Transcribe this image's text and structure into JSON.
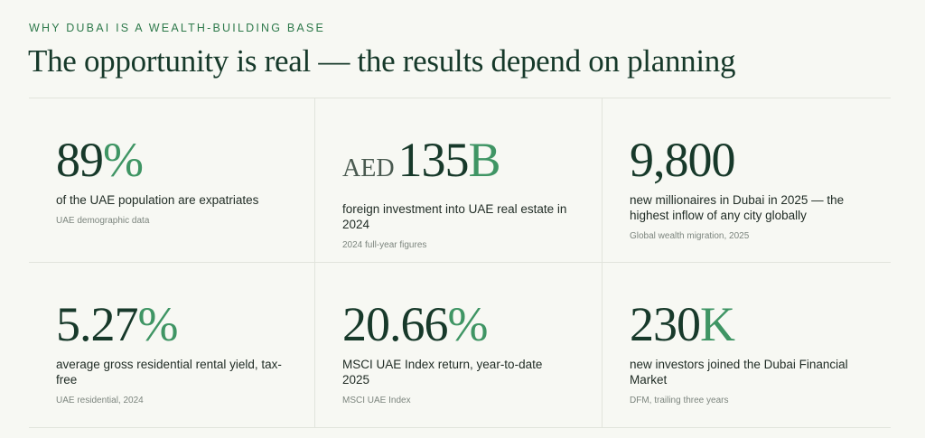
{
  "header": {
    "eyebrow": "WHY DUBAI IS A WEALTH-BUILDING BASE",
    "title": "The opportunity is real — the results depend on planning"
  },
  "stats": [
    {
      "number": "89",
      "suffix": "%",
      "description": "of the UAE population are expatriates",
      "source": "UAE demographic data"
    },
    {
      "prefix": "AED",
      "number": "135",
      "suffix": "B",
      "description": "foreign investment into UAE real estate in 2024",
      "source": "2024 full-year figures"
    },
    {
      "number": "9,800",
      "description": "new millionaires in Dubai in 2025 — the highest inflow of any city globally",
      "source": "Global wealth migration, 2025"
    },
    {
      "number": "5.27",
      "suffix": "%",
      "description": "average gross residential rental yield, tax-free",
      "source": "UAE residential, 2024"
    },
    {
      "number": "20.66",
      "suffix": "%",
      "description": "MSCI UAE Index return, year-to-date 2025",
      "source": "MSCI UAE Index"
    },
    {
      "number": "230",
      "suffix": "K",
      "description": "new investors joined the Dubai Financial Market",
      "source": "DFM, trailing three years"
    }
  ]
}
